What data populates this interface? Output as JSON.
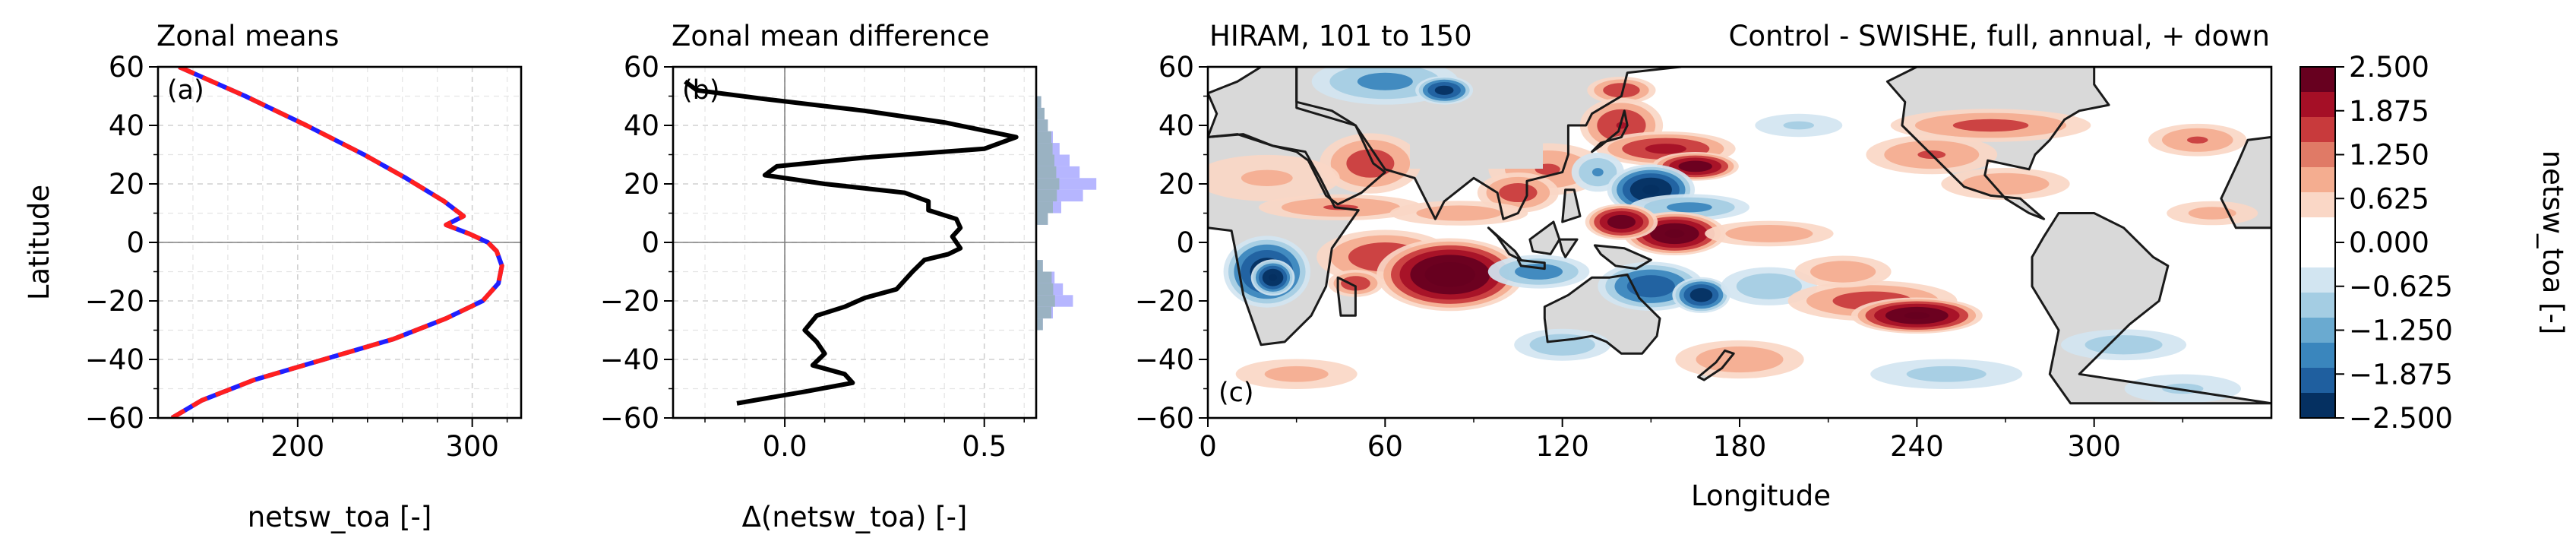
{
  "figure": {
    "panel_a": {
      "title": "Zonal means",
      "tag": "(a)",
      "ylabel": "Latitude",
      "xlabel": "netsw_toa [-]",
      "xlim": [
        120,
        328
      ],
      "ylim": [
        -60,
        60
      ],
      "xticks": [
        200,
        300
      ],
      "yticks": [
        -60,
        -40,
        -20,
        0,
        20,
        40,
        60
      ]
    },
    "panel_b": {
      "title": "Zonal mean difference",
      "tag": "(b)",
      "xlabel": "Δ(netsw_toa) [-]",
      "xlim": [
        -0.28,
        0.63
      ],
      "ylim": [
        -60,
        60
      ],
      "xticks": [
        0.0,
        0.5
      ],
      "yticks": [
        -60,
        -40,
        -20,
        0,
        20,
        40,
        60
      ]
    },
    "panel_c": {
      "title_left": "HIRAM, 101 to 150",
      "title_right": "Control - SWISHE, full, annual, + down",
      "tag": "(c)",
      "xlabel": "Longitude",
      "xlim": [
        0,
        360
      ],
      "ylim": [
        -60,
        60
      ],
      "xticks": [
        0,
        60,
        120,
        180,
        240,
        300
      ],
      "yticks": [
        -60,
        -40,
        -20,
        0,
        20,
        40,
        60
      ]
    },
    "colorbar": {
      "label": "netsw_toa [-]",
      "ticks": [
        "2.500",
        "1.875",
        "1.250",
        "0.625",
        "0.000",
        "−0.625",
        "−1.250",
        "−1.875",
        "−2.500"
      ],
      "colors": [
        "#67001f",
        "#a50f26",
        "#c83a3c",
        "#e07a66",
        "#f4ad90",
        "#fad7c6",
        "#ffffff",
        "#ffffff",
        "#d2e5f1",
        "#a4cde3",
        "#6aaad0",
        "#3a86bd",
        "#1f5f9f",
        "#053061"
      ],
      "land_color": "#d9d9d9"
    }
  },
  "chart_data": [
    {
      "type": "line",
      "title": "Zonal means",
      "xlabel": "netsw_toa [-]",
      "ylabel": "Latitude",
      "xlim": [
        120,
        328
      ],
      "ylim": [
        -60,
        60
      ],
      "grid": true,
      "series": [
        {
          "color": "#1f1fff",
          "style": "solid",
          "points": [
            [
              132,
              60
            ],
            [
              170,
              50
            ],
            [
              205,
              40
            ],
            [
              238,
              30
            ],
            [
              262,
              22
            ],
            [
              284,
              14
            ],
            [
              295,
              9
            ],
            [
              285,
              6
            ],
            [
              298,
              3
            ],
            [
              309,
              0
            ],
            [
              314,
              -3
            ],
            [
              317,
              -8
            ],
            [
              315,
              -14
            ],
            [
              306,
              -20
            ],
            [
              285,
              -26
            ],
            [
              255,
              -33
            ],
            [
              215,
              -40
            ],
            [
              175,
              -47
            ],
            [
              145,
              -54
            ],
            [
              128,
              -60
            ]
          ]
        },
        {
          "color": "#ff1f1f",
          "style": "dashed",
          "points": [
            [
              132,
              60
            ],
            [
              170,
              50
            ],
            [
              205,
              40
            ],
            [
              238,
              30
            ],
            [
              262,
              22
            ],
            [
              284,
              14
            ],
            [
              295,
              9
            ],
            [
              285,
              6
            ],
            [
              298,
              3
            ],
            [
              309,
              0
            ],
            [
              314,
              -3
            ],
            [
              317,
              -8
            ],
            [
              315,
              -14
            ],
            [
              306,
              -20
            ],
            [
              285,
              -26
            ],
            [
              255,
              -33
            ],
            [
              215,
              -40
            ],
            [
              175,
              -47
            ],
            [
              145,
              -54
            ],
            [
              128,
              -60
            ]
          ]
        }
      ]
    },
    {
      "type": "line",
      "title": "Zonal mean difference",
      "xlabel": "Δ(netsw_toa) [-]",
      "xlim": [
        -0.28,
        0.63
      ],
      "ylim": [
        -60,
        60
      ],
      "grid": true,
      "series": [
        {
          "color": "#000000",
          "style": "solid",
          "points": [
            [
              -0.25,
              55
            ],
            [
              -0.22,
              52
            ],
            [
              -0.05,
              49
            ],
            [
              0.2,
              45
            ],
            [
              0.4,
              41
            ],
            [
              0.58,
              36
            ],
            [
              0.5,
              32
            ],
            [
              0.2,
              29
            ],
            [
              -0.02,
              26
            ],
            [
              -0.05,
              23
            ],
            [
              0.1,
              20
            ],
            [
              0.3,
              17
            ],
            [
              0.36,
              14
            ],
            [
              0.36,
              11
            ],
            [
              0.43,
              8
            ],
            [
              0.44,
              5
            ],
            [
              0.42,
              2
            ],
            [
              0.44,
              -2
            ],
            [
              0.41,
              -4
            ],
            [
              0.35,
              -6
            ],
            [
              0.32,
              -10
            ],
            [
              0.28,
              -16
            ],
            [
              0.2,
              -19
            ],
            [
              0.15,
              -22
            ],
            [
              0.08,
              -25
            ],
            [
              0.05,
              -30
            ],
            [
              0.08,
              -34
            ],
            [
              0.1,
              -38
            ],
            [
              0.07,
              -42
            ],
            [
              0.15,
              -45
            ],
            [
              0.17,
              -48
            ],
            [
              0.05,
              -51
            ],
            [
              -0.12,
              -55
            ]
          ]
        },
        {
          "type": "bar",
          "color": "#9d9dff",
          "counts": [
            [
              48,
              0.3
            ],
            [
              44,
              0.5
            ],
            [
              40,
              0.7
            ],
            [
              36,
              1.0
            ],
            [
              32,
              1.4
            ],
            [
              28,
              2.0
            ],
            [
              24,
              2.6
            ],
            [
              20,
              3.6
            ],
            [
              16,
              2.8
            ],
            [
              12,
              1.5
            ],
            [
              8,
              0.7
            ],
            [
              -8,
              0.4
            ],
            [
              -12,
              1.1
            ],
            [
              -16,
              1.6
            ],
            [
              -20,
              2.2
            ],
            [
              -24,
              1.0
            ],
            [
              -28,
              0.4
            ]
          ]
        }
      ]
    },
    {
      "type": "heatmap",
      "title": "HIRAM, 101 to 150",
      "subtitle": "Control - SWISHE, full, annual, + down",
      "xlabel": "Longitude",
      "xlim": [
        0,
        360
      ],
      "ylim": [
        -60,
        60
      ],
      "vmin": -2.5,
      "vmax": 2.5,
      "blobs": [
        [
          20,
          -10,
          12,
          10,
          -2.4
        ],
        [
          22,
          -12,
          6,
          5,
          -2.6
        ],
        [
          60,
          55,
          22,
          7,
          -1.4
        ],
        [
          80,
          52,
          8,
          4,
          -2.3
        ],
        [
          140,
          52,
          10,
          4,
          1.6
        ],
        [
          140,
          40,
          12,
          8,
          1.7
        ],
        [
          155,
          32,
          20,
          5,
          1.8
        ],
        [
          165,
          26,
          12,
          4,
          2.4
        ],
        [
          115,
          25,
          18,
          8,
          1.3
        ],
        [
          105,
          17,
          12,
          6,
          1.5
        ],
        [
          55,
          27,
          15,
          9,
          1.5
        ],
        [
          45,
          12,
          25,
          4,
          1.3
        ],
        [
          85,
          10,
          22,
          4,
          1.1
        ],
        [
          132,
          24,
          8,
          6,
          -1.3
        ],
        [
          150,
          18,
          12,
          7,
          -2.6
        ],
        [
          163,
          12,
          18,
          4,
          -1.4
        ],
        [
          158,
          3,
          14,
          6,
          2.6
        ],
        [
          140,
          7,
          10,
          5,
          2.4
        ],
        [
          190,
          3,
          20,
          4,
          1.2
        ],
        [
          60,
          -5,
          20,
          8,
          1.6
        ],
        [
          82,
          -11,
          20,
          10,
          2.8
        ],
        [
          50,
          -14,
          8,
          4,
          1.6
        ],
        [
          112,
          -10,
          15,
          5,
          -1.5
        ],
        [
          150,
          -15,
          15,
          7,
          -2.0
        ],
        [
          167,
          -18,
          8,
          5,
          -2.4
        ],
        [
          190,
          -15,
          15,
          6,
          -1.2
        ],
        [
          225,
          -20,
          25,
          6,
          1.5
        ],
        [
          240,
          -25,
          18,
          5,
          2.6
        ],
        [
          215,
          -10,
          15,
          5,
          1.2
        ],
        [
          265,
          40,
          30,
          5,
          1.4
        ],
        [
          245,
          30,
          20,
          6,
          1.3
        ],
        [
          270,
          20,
          20,
          5,
          1.2
        ],
        [
          335,
          35,
          15,
          5,
          1.3
        ],
        [
          20,
          22,
          25,
          8,
          0.9
        ],
        [
          120,
          -35,
          15,
          5,
          -1.2
        ],
        [
          180,
          -40,
          20,
          6,
          1.2
        ],
        [
          250,
          -45,
          25,
          5,
          -1.0
        ],
        [
          310,
          -35,
          20,
          5,
          -1.1
        ],
        [
          330,
          -50,
          20,
          5,
          -0.9
        ],
        [
          30,
          -45,
          20,
          5,
          1.0
        ],
        [
          340,
          10,
          15,
          4,
          1.0
        ],
        [
          200,
          40,
          15,
          4,
          -0.9
        ]
      ]
    }
  ]
}
